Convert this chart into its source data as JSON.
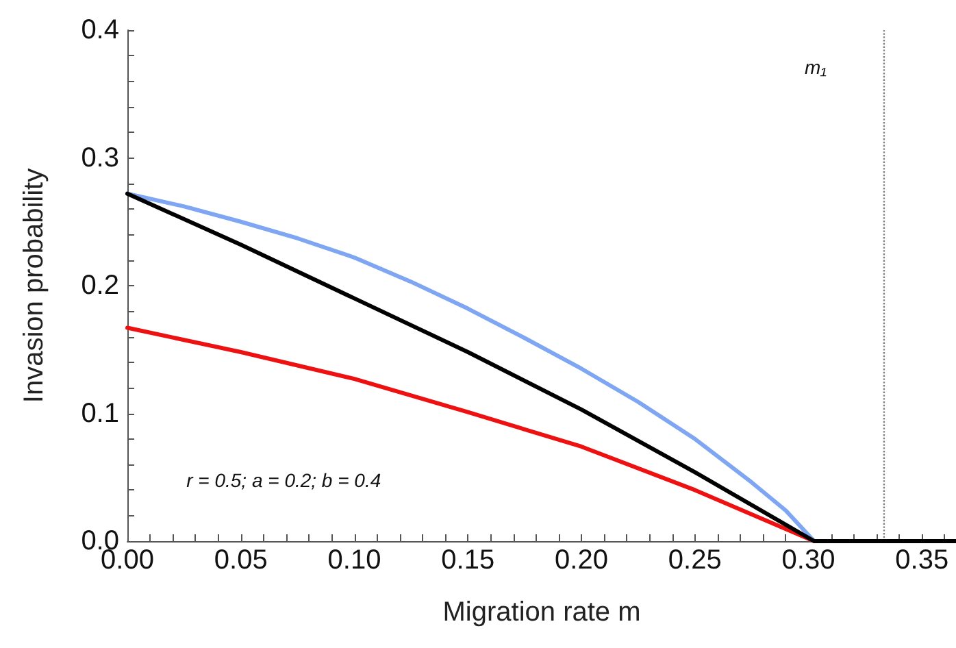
{
  "chart_data": {
    "type": "line",
    "xlabel": "Migration rate m",
    "ylabel": "Invasion probability",
    "xlim": [
      0,
      0.365
    ],
    "ylim": [
      0,
      0.4
    ],
    "xticks": [
      {
        "value": 0,
        "label": "0.00"
      },
      {
        "value": 0.01,
        "label": null
      },
      {
        "value": 0.02,
        "label": null
      },
      {
        "value": 0.03,
        "label": null
      },
      {
        "value": 0.04,
        "label": null
      },
      {
        "value": 0.05,
        "label": "0.05"
      },
      {
        "value": 0.06,
        "label": null
      },
      {
        "value": 0.07,
        "label": null
      },
      {
        "value": 0.08,
        "label": null
      },
      {
        "value": 0.09,
        "label": null
      },
      {
        "value": 0.1,
        "label": "0.10"
      },
      {
        "value": 0.11,
        "label": null
      },
      {
        "value": 0.12,
        "label": null
      },
      {
        "value": 0.13,
        "label": null
      },
      {
        "value": 0.14,
        "label": null
      },
      {
        "value": 0.15,
        "label": "0.15"
      },
      {
        "value": 0.16,
        "label": null
      },
      {
        "value": 0.17,
        "label": null
      },
      {
        "value": 0.18,
        "label": null
      },
      {
        "value": 0.19,
        "label": null
      },
      {
        "value": 0.2,
        "label": "0.20"
      },
      {
        "value": 0.21,
        "label": null
      },
      {
        "value": 0.22,
        "label": null
      },
      {
        "value": 0.23,
        "label": null
      },
      {
        "value": 0.24,
        "label": null
      },
      {
        "value": 0.25,
        "label": "0.25"
      },
      {
        "value": 0.26,
        "label": null
      },
      {
        "value": 0.27,
        "label": null
      },
      {
        "value": 0.28,
        "label": null
      },
      {
        "value": 0.29,
        "label": null
      },
      {
        "value": 0.3,
        "label": "0.30"
      },
      {
        "value": 0.31,
        "label": null
      },
      {
        "value": 0.32,
        "label": null
      },
      {
        "value": 0.33,
        "label": null
      },
      {
        "value": 0.34,
        "label": null
      },
      {
        "value": 0.35,
        "label": "0.35"
      },
      {
        "value": 0.36,
        "label": null
      }
    ],
    "yticks": [
      {
        "value": 0,
        "label": "0.0"
      },
      {
        "value": 0.02,
        "label": null
      },
      {
        "value": 0.04,
        "label": null
      },
      {
        "value": 0.06,
        "label": null
      },
      {
        "value": 0.08,
        "label": null
      },
      {
        "value": 0.1,
        "label": "0.1"
      },
      {
        "value": 0.12,
        "label": null
      },
      {
        "value": 0.14,
        "label": null
      },
      {
        "value": 0.16,
        "label": null
      },
      {
        "value": 0.18,
        "label": null
      },
      {
        "value": 0.2,
        "label": "0.2"
      },
      {
        "value": 0.22,
        "label": null
      },
      {
        "value": 0.24,
        "label": null
      },
      {
        "value": 0.26,
        "label": null
      },
      {
        "value": 0.28,
        "label": null
      },
      {
        "value": 0.3,
        "label": "0.3"
      },
      {
        "value": 0.32,
        "label": null
      },
      {
        "value": 0.34,
        "label": null
      },
      {
        "value": 0.36,
        "label": null
      },
      {
        "value": 0.38,
        "label": null
      },
      {
        "value": 0.4,
        "label": "0.4"
      }
    ],
    "series": [
      {
        "color": "#7fa6f2",
        "x": [
          0,
          0.025,
          0.05,
          0.075,
          0.1,
          0.125,
          0.15,
          0.175,
          0.2,
          0.225,
          0.25,
          0.275,
          0.29,
          0.3025
        ],
        "values": [
          0.272,
          0.262,
          0.25,
          0.237,
          0.222,
          0.203,
          0.182,
          0.159,
          0.135,
          0.109,
          0.08,
          0.046,
          0.024,
          0
        ]
      },
      {
        "color": "#ee1111",
        "x": [
          0,
          0.05,
          0.1,
          0.15,
          0.2,
          0.25,
          0.3025
        ],
        "values": [
          0.167,
          0.148,
          0.127,
          0.101,
          0.074,
          0.04,
          0
        ]
      },
      {
        "color": "#000000",
        "x": [
          0,
          0.05,
          0.1,
          0.15,
          0.2,
          0.25,
          0.3025,
          0.365
        ],
        "values": [
          0.272,
          0.232,
          0.19,
          0.148,
          0.103,
          0.054,
          0,
          0
        ]
      }
    ],
    "ref_lines": [
      {
        "axis": "x",
        "value": 0.3333,
        "label": "m₁",
        "color": "#808080",
        "line_style": "dotted"
      }
    ],
    "annotations": [
      "r = 0.5; a = 0.2; b = 0.4"
    ],
    "grid": false,
    "marker": "none",
    "line_style": "solid"
  }
}
